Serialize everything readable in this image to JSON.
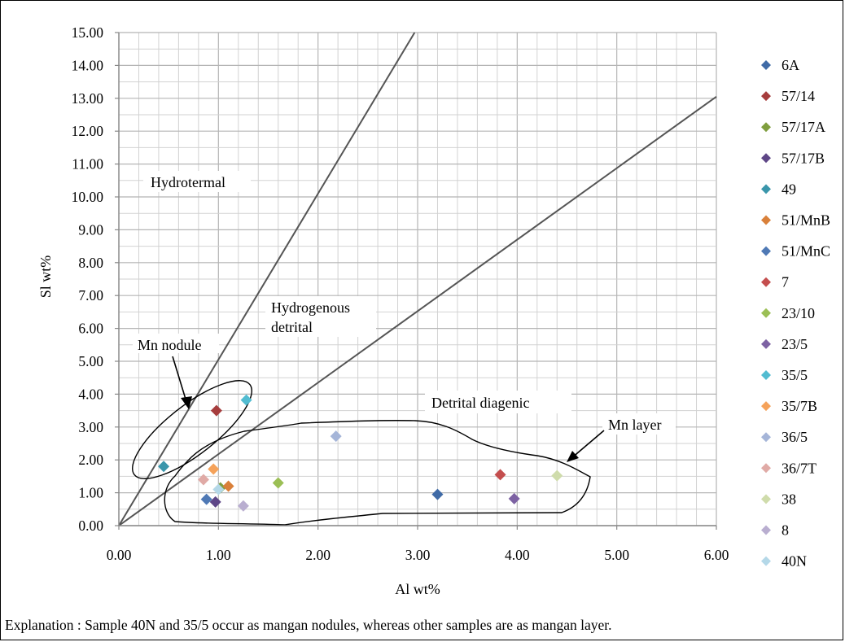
{
  "chart_data": {
    "type": "scatter",
    "title": "",
    "xlabel": "Al wt%",
    "ylabel": "Sl wt%",
    "xlim": [
      0,
      6
    ],
    "ylim": [
      0,
      15
    ],
    "grid": true,
    "legend_position": "right",
    "x_ticks": [
      "0.00",
      "1.00",
      "2.00",
      "3.00",
      "4.00",
      "5.00",
      "6.00"
    ],
    "y_ticks": [
      "0.00",
      "1.00",
      "2.00",
      "3.00",
      "4.00",
      "5.00",
      "6.00",
      "7.00",
      "8.00",
      "9.00",
      "10.00",
      "11.00",
      "12.00",
      "13.00",
      "14.00",
      "15.00"
    ],
    "series": [
      {
        "name": "6A",
        "color": "#3f6aa6",
        "points": [
          [
            3.2,
            0.95
          ]
        ]
      },
      {
        "name": "57/14",
        "color": "#a63d3d",
        "points": [
          [
            0.98,
            3.5
          ]
        ]
      },
      {
        "name": "57/17A",
        "color": "#7f9e3e",
        "points": [
          [
            1.02,
            1.15
          ]
        ]
      },
      {
        "name": "57/17B",
        "color": "#5e4687",
        "points": [
          [
            0.97,
            0.72
          ]
        ]
      },
      {
        "name": "49",
        "color": "#3a96ab",
        "points": [
          [
            0.45,
            1.8
          ]
        ]
      },
      {
        "name": "51/MnB",
        "color": "#d9803a",
        "points": [
          [
            1.1,
            1.2
          ]
        ]
      },
      {
        "name": "51/MnC",
        "color": "#4f79b5",
        "points": [
          [
            0.88,
            0.8
          ]
        ]
      },
      {
        "name": "7",
        "color": "#c44e4e",
        "points": [
          [
            3.83,
            1.55
          ]
        ]
      },
      {
        "name": "23/10",
        "color": "#9bbf55",
        "points": [
          [
            1.6,
            1.3
          ]
        ]
      },
      {
        "name": "23/5",
        "color": "#7d62a3",
        "points": [
          [
            3.97,
            0.82
          ]
        ]
      },
      {
        "name": "35/5",
        "color": "#52bcd1",
        "points": [
          [
            1.28,
            3.82
          ]
        ]
      },
      {
        "name": "35/7B",
        "color": "#f5a25a",
        "points": [
          [
            0.95,
            1.72
          ]
        ]
      },
      {
        "name": "36/5",
        "color": "#a5b5d8",
        "points": [
          [
            2.18,
            2.72
          ]
        ]
      },
      {
        "name": "36/7T",
        "color": "#e0aaa6",
        "points": [
          [
            0.85,
            1.4
          ]
        ]
      },
      {
        "name": "38",
        "color": "#cfdcab",
        "points": [
          [
            4.4,
            1.52
          ]
        ]
      },
      {
        "name": "8",
        "color": "#b9aed0",
        "points": [
          [
            1.25,
            0.6
          ]
        ]
      },
      {
        "name": "40N",
        "color": "#b4d8e8",
        "points": [
          [
            1.0,
            1.1
          ]
        ]
      }
    ],
    "annotations": [
      {
        "id": "hydrotermal",
        "text": "Hydrotermal"
      },
      {
        "id": "hydrogenous",
        "lines": [
          "Hydrogenous",
          "detrital"
        ]
      },
      {
        "id": "mn-nodule",
        "text": "Mn nodule"
      },
      {
        "id": "detrital-diagenic",
        "text": "Detrital diagenic"
      },
      {
        "id": "mn-layer",
        "text": "Mn layer"
      }
    ],
    "boundary_lines": [
      {
        "from": [
          0,
          0
        ],
        "to": [
          2.97,
          15
        ]
      },
      {
        "from": [
          0,
          0
        ],
        "to": [
          6,
          13.05
        ]
      }
    ]
  },
  "explanation": "Explanation : Sample 40N and 35/5 occur as mangan nodules, whereas other samples are as mangan layer."
}
